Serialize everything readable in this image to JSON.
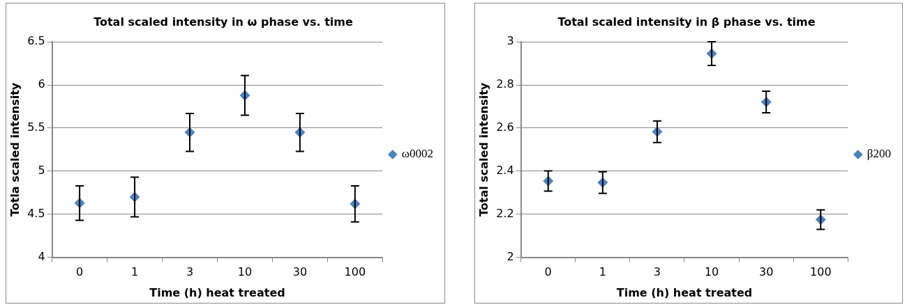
{
  "chart_data": [
    {
      "type": "scatter",
      "title": "Total scaled intensity in ω phase vs. time",
      "xlabel": "Time (h) heat treated",
      "ylabel": "Totla scaled intensity",
      "categories": [
        "0",
        "1",
        "3",
        "10",
        "30",
        "100"
      ],
      "series": [
        {
          "name": "ω0002",
          "color": "#4f81bd",
          "values": [
            4.63,
            4.7,
            5.45,
            5.88,
            5.45,
            4.62
          ],
          "errors": [
            0.2,
            0.23,
            0.22,
            0.23,
            0.22,
            0.21
          ]
        }
      ],
      "ylim": [
        4,
        6.5
      ],
      "yticks": [
        4,
        4.5,
        5,
        5.5,
        6,
        6.5
      ],
      "grid": "y",
      "legend": "right",
      "marker": "diamond"
    },
    {
      "type": "scatter",
      "title": "Total scaled intensity in β phase vs. time",
      "xlabel": "Time (h) heat treated",
      "ylabel": "Total scaled intensity",
      "categories": [
        "0",
        "1",
        "3",
        "10",
        "30",
        "100"
      ],
      "series": [
        {
          "name": "β200",
          "color": "#4f81bd",
          "values": [
            2.354,
            2.347,
            2.583,
            2.946,
            2.721,
            2.175
          ],
          "errors": [
            0.047,
            0.05,
            0.05,
            0.055,
            0.05,
            0.045
          ]
        }
      ],
      "ylim": [
        2,
        3
      ],
      "yticks": [
        2,
        2.2,
        2.4,
        2.6,
        2.8,
        3
      ],
      "grid": "y",
      "legend": "right",
      "marker": "diamond"
    }
  ]
}
